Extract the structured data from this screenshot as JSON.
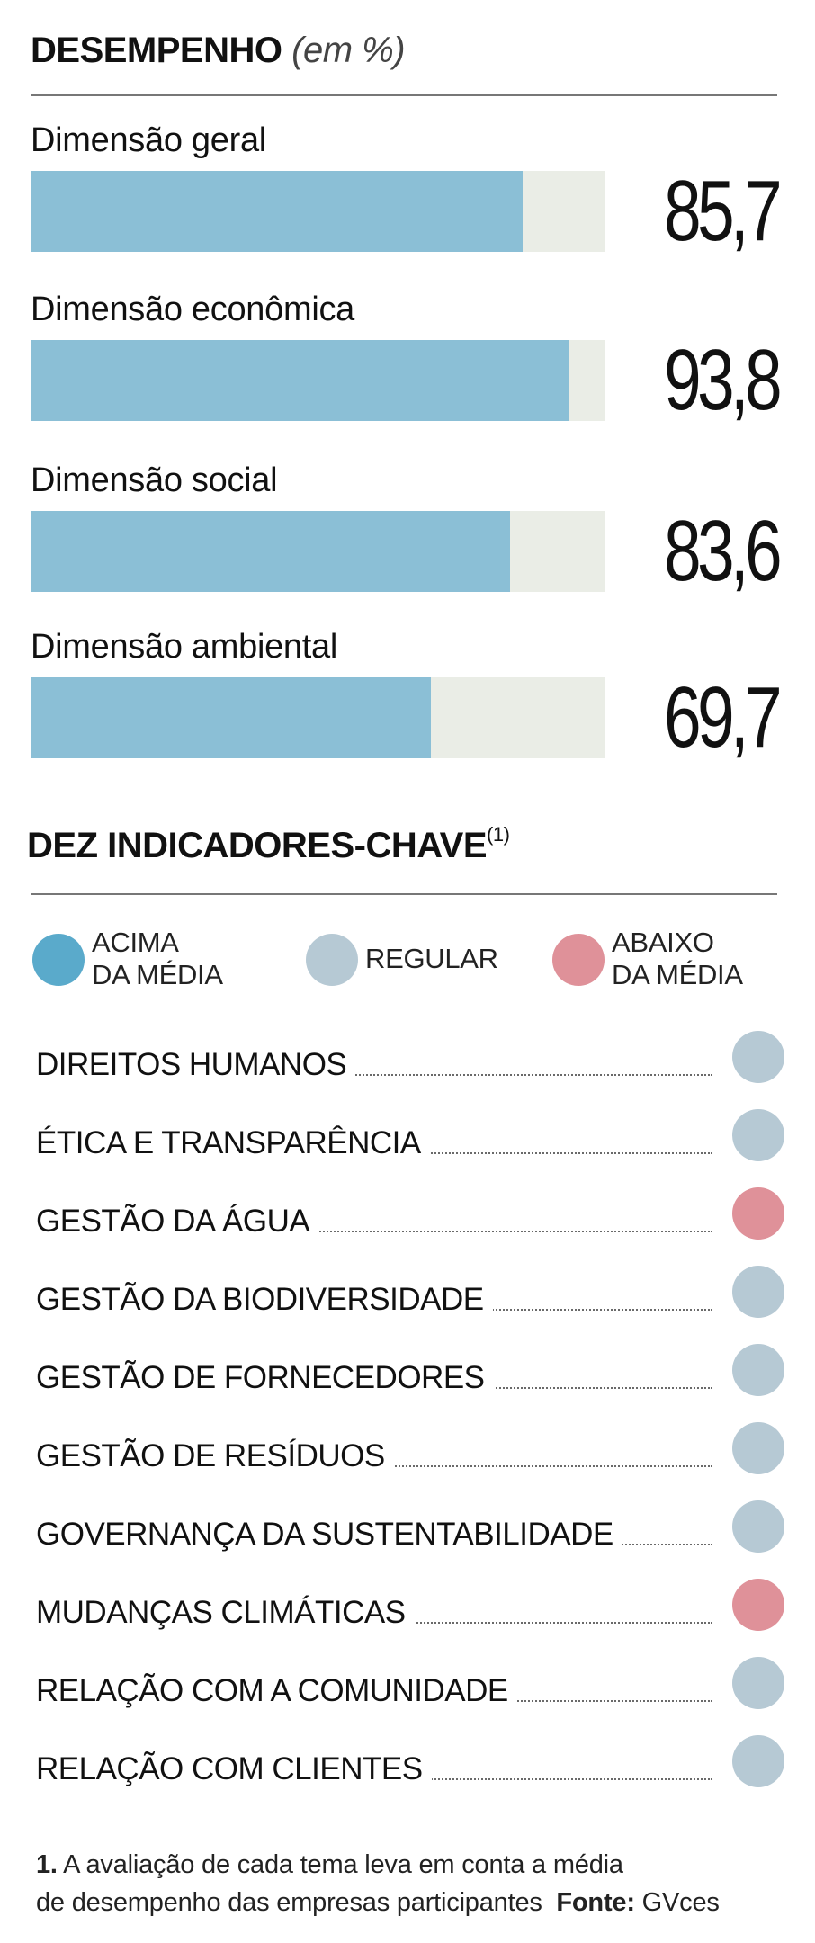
{
  "section1": {
    "title": "DESEMPENHO",
    "unit": "(em %)"
  },
  "chart_data": {
    "type": "bar",
    "title": "DESEMPENHO (em %)",
    "orientation": "horizontal",
    "categories": [
      "Dimensão geral",
      "Dimensão econômica",
      "Dimensão social",
      "Dimensão ambiental"
    ],
    "values": [
      85.7,
      93.8,
      83.6,
      69.7
    ],
    "value_labels": [
      "85,7",
      "93,8",
      "83,6",
      "69,7"
    ],
    "xlim": [
      0,
      100
    ],
    "xlabel": "",
    "ylabel": "",
    "colors": {
      "fill": "#8bbfd6",
      "track": "#eaede6"
    }
  },
  "section2": {
    "title": "DEZ INDICADORES-CHAVE",
    "title_note": "(1)",
    "legend": [
      {
        "line1": "ACIMA",
        "line2": "DA MÉDIA",
        "color": "#5aaacb"
      },
      {
        "line1": "REGULAR",
        "line2": "",
        "color": "#b6c9d4"
      },
      {
        "line1": "ABAIXO",
        "line2": "DA MÉDIA",
        "color": "#df9199"
      }
    ],
    "indicators": [
      {
        "label": "DIREITOS HUMANOS",
        "status": "REGULAR",
        "color": "#b6c9d4"
      },
      {
        "label": "ÉTICA E TRANSPARÊNCIA",
        "status": "REGULAR",
        "color": "#b6c9d4"
      },
      {
        "label": "GESTÃO DA ÁGUA",
        "status": "ABAIXO DA MÉDIA",
        "color": "#df9199"
      },
      {
        "label": "GESTÃO DA BIODIVERSIDADE",
        "status": "REGULAR",
        "color": "#b6c9d4"
      },
      {
        "label": "GESTÃO DE FORNECEDORES",
        "status": "REGULAR",
        "color": "#b6c9d4"
      },
      {
        "label": "GESTÃO DE RESÍDUOS",
        "status": "REGULAR",
        "color": "#b6c9d4"
      },
      {
        "label": "GOVERNANÇA DA SUSTENTABILIDADE",
        "status": "REGULAR",
        "color": "#b6c9d4"
      },
      {
        "label": "MUDANÇAS CLIMÁTICAS",
        "status": "ABAIXO DA MÉDIA",
        "color": "#df9199"
      },
      {
        "label": "RELAÇÃO COM A COMUNIDADE",
        "status": "REGULAR",
        "color": "#b6c9d4"
      },
      {
        "label": "RELAÇÃO COM CLIENTES",
        "status": "REGULAR",
        "color": "#b6c9d4"
      }
    ]
  },
  "footnote": {
    "number": "1.",
    "line1": "A avaliação de cada tema leva em conta a média",
    "line2": "de desempenho das empresas participantes",
    "source_label": "Fonte:",
    "source": "GVces"
  }
}
